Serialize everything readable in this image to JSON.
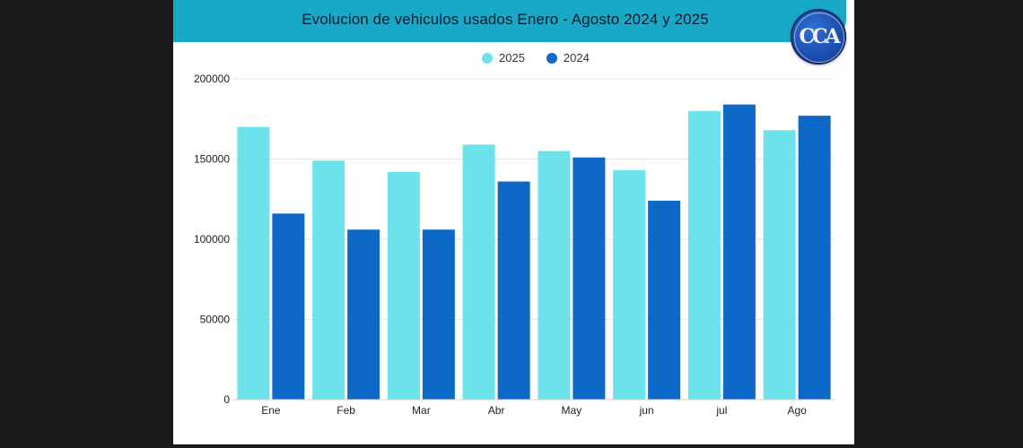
{
  "title": "Evolucion de vehiculos usados Enero - Agosto 2024 y 2025",
  "logo": {
    "label": "CCA"
  },
  "colors": {
    "series_2025": "#6ee2ea",
    "series_2024": "#0e68c6",
    "title_bar": "#1aa8c9",
    "grid": "#e3e3e3"
  },
  "chart_data": {
    "type": "bar",
    "title": "Evolucion de vehiculos usados Enero - Agosto 2024 y 2025",
    "xlabel": "",
    "ylabel": "",
    "categories": [
      "Ene",
      "Feb",
      "Mar",
      "Abr",
      "May",
      "jun",
      "jul",
      "Ago"
    ],
    "series": [
      {
        "name": "2025",
        "values": [
          170000,
          149000,
          142000,
          159000,
          155000,
          143000,
          180000,
          168000
        ]
      },
      {
        "name": "2024",
        "values": [
          116000,
          106000,
          106000,
          136000,
          151000,
          124000,
          184000,
          177000
        ]
      }
    ],
    "ylim": [
      0,
      200000
    ],
    "yticks": [
      "200000",
      "150000",
      "100000",
      "50000",
      "0"
    ],
    "grid": true,
    "legend": "top-center"
  }
}
